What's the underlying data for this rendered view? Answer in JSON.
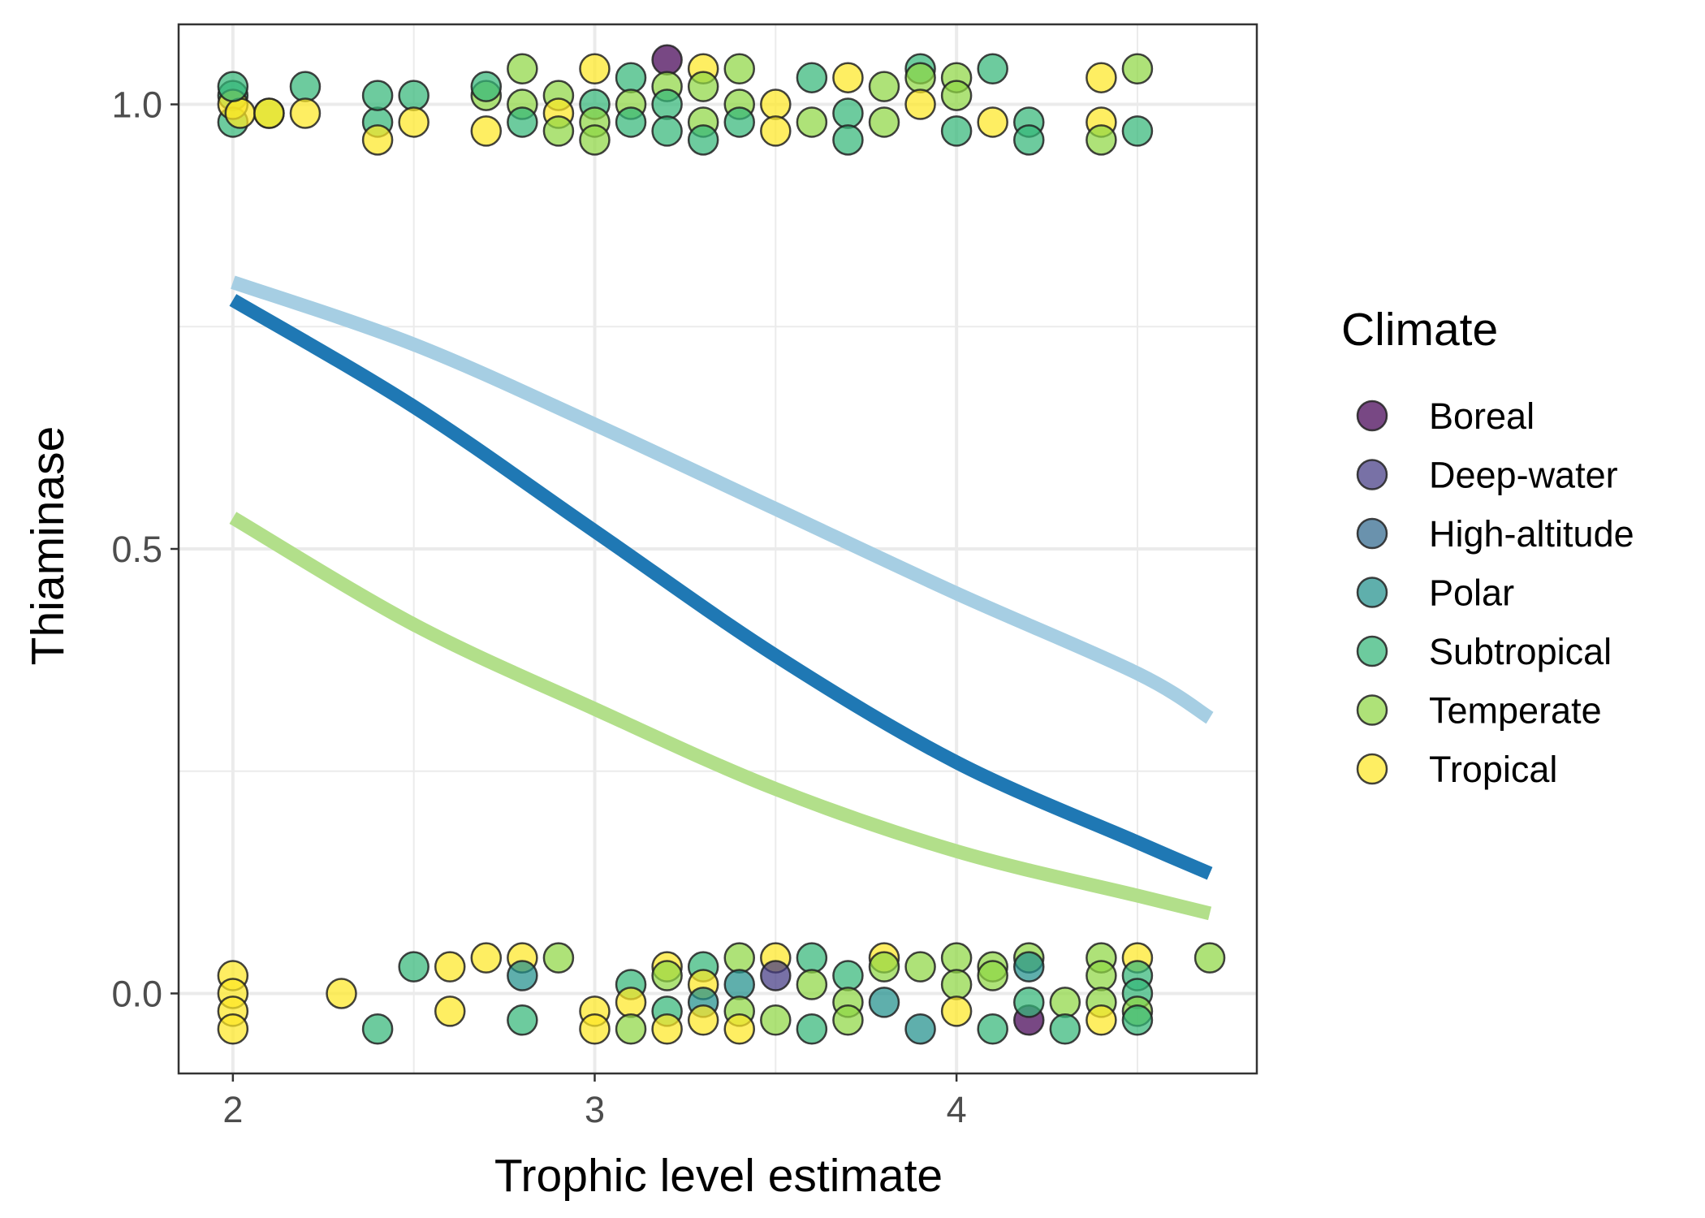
{
  "chart_data": {
    "type": "scatter",
    "xlabel": "Trophic level estimate",
    "ylabel": "Thiaminase",
    "x_ticks": [
      2,
      3,
      4
    ],
    "y_ticks": [
      "0.0",
      "0.5",
      "1.0"
    ],
    "xlim": [
      1.85,
      4.83
    ],
    "ylim": [
      -0.09,
      1.09
    ],
    "grid": true,
    "legend_title": "Climate",
    "legend_position": "right",
    "categories": [
      {
        "name": "Boreal",
        "color": "#440154"
      },
      {
        "name": "Deep-water",
        "color": "#443A83"
      },
      {
        "name": "High-altitude",
        "color": "#31688E"
      },
      {
        "name": "Polar",
        "color": "#21908C"
      },
      {
        "name": "Subtropical",
        "color": "#35B779"
      },
      {
        "name": "Temperate",
        "color": "#8FD744"
      },
      {
        "name": "Tropical",
        "color": "#FDE725"
      }
    ],
    "curves": [
      {
        "color": "#A6CEE3",
        "x": [
          2.0,
          2.5,
          3.0,
          3.5,
          4.0,
          4.5,
          4.7
        ],
        "y": [
          0.8,
          0.73,
          0.64,
          0.545,
          0.45,
          0.36,
          0.31
        ]
      },
      {
        "color": "#1F78B4",
        "x": [
          2.0,
          2.5,
          3.0,
          3.5,
          4.0,
          4.5,
          4.7
        ],
        "y": [
          0.78,
          0.66,
          0.52,
          0.38,
          0.26,
          0.17,
          0.135
        ]
      },
      {
        "color": "#B2DF8A",
        "x": [
          2.0,
          2.5,
          3.0,
          3.5,
          4.0,
          4.5,
          4.7
        ],
        "y": [
          0.535,
          0.415,
          0.32,
          0.23,
          0.16,
          0.11,
          0.09
        ]
      }
    ],
    "points": [
      {
        "x": 2.0,
        "y": 1.01,
        "c": "Subtropical"
      },
      {
        "x": 2.0,
        "y": 0.98,
        "c": "Subtropical"
      },
      {
        "x": 2.0,
        "y": 1.0,
        "c": "Tropical"
      },
      {
        "x": 2.02,
        "y": 0.99,
        "c": "Tropical"
      },
      {
        "x": 2.0,
        "y": 1.02,
        "c": "Subtropical"
      },
      {
        "x": 2.1,
        "y": 0.99,
        "c": "Temperate"
      },
      {
        "x": 2.1,
        "y": 0.99,
        "c": "Tropical"
      },
      {
        "x": 2.2,
        "y": 1.02,
        "c": "Subtropical"
      },
      {
        "x": 2.2,
        "y": 0.99,
        "c": "Tropical"
      },
      {
        "x": 2.4,
        "y": 0.98,
        "c": "Subtropical"
      },
      {
        "x": 2.4,
        "y": 1.01,
        "c": "Subtropical"
      },
      {
        "x": 2.4,
        "y": 0.96,
        "c": "Tropical"
      },
      {
        "x": 2.5,
        "y": 1.01,
        "c": "Subtropical"
      },
      {
        "x": 2.5,
        "y": 0.98,
        "c": "Tropical"
      },
      {
        "x": 2.7,
        "y": 1.01,
        "c": "Temperate"
      },
      {
        "x": 2.7,
        "y": 1.02,
        "c": "Subtropical"
      },
      {
        "x": 2.7,
        "y": 0.97,
        "c": "Tropical"
      },
      {
        "x": 2.8,
        "y": 1.04,
        "c": "Temperate"
      },
      {
        "x": 2.8,
        "y": 1.0,
        "c": "Temperate"
      },
      {
        "x": 2.8,
        "y": 0.98,
        "c": "Subtropical"
      },
      {
        "x": 2.9,
        "y": 1.01,
        "c": "Temperate"
      },
      {
        "x": 2.9,
        "y": 0.99,
        "c": "Tropical"
      },
      {
        "x": 2.9,
        "y": 0.97,
        "c": "Temperate"
      },
      {
        "x": 3.0,
        "y": 1.04,
        "c": "Tropical"
      },
      {
        "x": 3.0,
        "y": 1.0,
        "c": "Subtropical"
      },
      {
        "x": 3.0,
        "y": 0.98,
        "c": "Temperate"
      },
      {
        "x": 3.0,
        "y": 0.96,
        "c": "Temperate"
      },
      {
        "x": 3.1,
        "y": 1.03,
        "c": "Subtropical"
      },
      {
        "x": 3.1,
        "y": 1.0,
        "c": "Temperate"
      },
      {
        "x": 3.1,
        "y": 0.98,
        "c": "Subtropical"
      },
      {
        "x": 3.2,
        "y": 1.05,
        "c": "Boreal"
      },
      {
        "x": 3.2,
        "y": 1.02,
        "c": "Temperate"
      },
      {
        "x": 3.2,
        "y": 1.0,
        "c": "Subtropical"
      },
      {
        "x": 3.2,
        "y": 0.97,
        "c": "Subtropical"
      },
      {
        "x": 3.3,
        "y": 1.04,
        "c": "Tropical"
      },
      {
        "x": 3.3,
        "y": 1.02,
        "c": "Temperate"
      },
      {
        "x": 3.3,
        "y": 0.98,
        "c": "Temperate"
      },
      {
        "x": 3.3,
        "y": 0.96,
        "c": "Subtropical"
      },
      {
        "x": 3.4,
        "y": 1.04,
        "c": "Temperate"
      },
      {
        "x": 3.4,
        "y": 1.0,
        "c": "Temperate"
      },
      {
        "x": 3.4,
        "y": 0.98,
        "c": "Subtropical"
      },
      {
        "x": 3.5,
        "y": 1.0,
        "c": "Tropical"
      },
      {
        "x": 3.5,
        "y": 0.97,
        "c": "Tropical"
      },
      {
        "x": 3.6,
        "y": 1.03,
        "c": "Subtropical"
      },
      {
        "x": 3.6,
        "y": 0.98,
        "c": "Temperate"
      },
      {
        "x": 3.7,
        "y": 1.03,
        "c": "Tropical"
      },
      {
        "x": 3.7,
        "y": 0.99,
        "c": "Subtropical"
      },
      {
        "x": 3.7,
        "y": 0.96,
        "c": "Subtropical"
      },
      {
        "x": 3.8,
        "y": 1.02,
        "c": "Temperate"
      },
      {
        "x": 3.8,
        "y": 0.98,
        "c": "Temperate"
      },
      {
        "x": 3.9,
        "y": 1.04,
        "c": "Subtropical"
      },
      {
        "x": 3.9,
        "y": 1.03,
        "c": "Temperate"
      },
      {
        "x": 3.9,
        "y": 1.0,
        "c": "Tropical"
      },
      {
        "x": 4.0,
        "y": 1.03,
        "c": "Temperate"
      },
      {
        "x": 4.0,
        "y": 1.01,
        "c": "Temperate"
      },
      {
        "x": 4.0,
        "y": 0.97,
        "c": "Subtropical"
      },
      {
        "x": 4.1,
        "y": 1.04,
        "c": "Subtropical"
      },
      {
        "x": 4.1,
        "y": 0.98,
        "c": "Tropical"
      },
      {
        "x": 4.2,
        "y": 0.98,
        "c": "Subtropical"
      },
      {
        "x": 4.2,
        "y": 0.96,
        "c": "Subtropical"
      },
      {
        "x": 4.4,
        "y": 1.03,
        "c": "Tropical"
      },
      {
        "x": 4.4,
        "y": 0.98,
        "c": "Tropical"
      },
      {
        "x": 4.4,
        "y": 0.96,
        "c": "Temperate"
      },
      {
        "x": 4.5,
        "y": 1.04,
        "c": "Temperate"
      },
      {
        "x": 4.5,
        "y": 0.97,
        "c": "Subtropical"
      },
      {
        "x": 2.0,
        "y": 0.02,
        "c": "Tropical"
      },
      {
        "x": 2.0,
        "y": 0.0,
        "c": "Tropical"
      },
      {
        "x": 2.0,
        "y": -0.02,
        "c": "Tropical"
      },
      {
        "x": 2.0,
        "y": -0.04,
        "c": "Tropical"
      },
      {
        "x": 2.3,
        "y": 0.0,
        "c": "Tropical"
      },
      {
        "x": 2.4,
        "y": -0.04,
        "c": "Subtropical"
      },
      {
        "x": 2.5,
        "y": 0.03,
        "c": "Subtropical"
      },
      {
        "x": 2.6,
        "y": 0.03,
        "c": "Tropical"
      },
      {
        "x": 2.6,
        "y": -0.02,
        "c": "Tropical"
      },
      {
        "x": 2.7,
        "y": 0.04,
        "c": "Tropical"
      },
      {
        "x": 2.8,
        "y": 0.04,
        "c": "Tropical"
      },
      {
        "x": 2.8,
        "y": 0.02,
        "c": "Polar"
      },
      {
        "x": 2.8,
        "y": -0.03,
        "c": "Subtropical"
      },
      {
        "x": 2.9,
        "y": 0.04,
        "c": "Temperate"
      },
      {
        "x": 3.0,
        "y": -0.02,
        "c": "Tropical"
      },
      {
        "x": 3.0,
        "y": -0.04,
        "c": "Tropical"
      },
      {
        "x": 3.1,
        "y": 0.01,
        "c": "Subtropical"
      },
      {
        "x": 3.1,
        "y": -0.01,
        "c": "Tropical"
      },
      {
        "x": 3.1,
        "y": -0.04,
        "c": "Temperate"
      },
      {
        "x": 3.2,
        "y": 0.03,
        "c": "Tropical"
      },
      {
        "x": 3.2,
        "y": 0.02,
        "c": "Temperate"
      },
      {
        "x": 3.2,
        "y": -0.02,
        "c": "Subtropical"
      },
      {
        "x": 3.2,
        "y": -0.04,
        "c": "Tropical"
      },
      {
        "x": 3.3,
        "y": 0.03,
        "c": "Subtropical"
      },
      {
        "x": 3.3,
        "y": 0.01,
        "c": "Tropical"
      },
      {
        "x": 3.3,
        "y": -0.01,
        "c": "Polar"
      },
      {
        "x": 3.3,
        "y": -0.03,
        "c": "Tropical"
      },
      {
        "x": 3.4,
        "y": 0.04,
        "c": "Temperate"
      },
      {
        "x": 3.4,
        "y": 0.01,
        "c": "Polar"
      },
      {
        "x": 3.4,
        "y": -0.02,
        "c": "Temperate"
      },
      {
        "x": 3.4,
        "y": -0.04,
        "c": "Tropical"
      },
      {
        "x": 3.5,
        "y": 0.04,
        "c": "Tropical"
      },
      {
        "x": 3.5,
        "y": 0.02,
        "c": "Deep-water"
      },
      {
        "x": 3.5,
        "y": -0.03,
        "c": "Temperate"
      },
      {
        "x": 3.6,
        "y": 0.04,
        "c": "Subtropical"
      },
      {
        "x": 3.6,
        "y": 0.01,
        "c": "Temperate"
      },
      {
        "x": 3.6,
        "y": -0.04,
        "c": "Subtropical"
      },
      {
        "x": 3.7,
        "y": 0.02,
        "c": "Subtropical"
      },
      {
        "x": 3.7,
        "y": -0.01,
        "c": "Temperate"
      },
      {
        "x": 3.7,
        "y": -0.03,
        "c": "Temperate"
      },
      {
        "x": 3.8,
        "y": 0.04,
        "c": "Tropical"
      },
      {
        "x": 3.8,
        "y": 0.03,
        "c": "Temperate"
      },
      {
        "x": 3.8,
        "y": -0.01,
        "c": "Polar"
      },
      {
        "x": 3.9,
        "y": 0.03,
        "c": "Temperate"
      },
      {
        "x": 3.9,
        "y": -0.04,
        "c": "Polar"
      },
      {
        "x": 4.0,
        "y": 0.04,
        "c": "Temperate"
      },
      {
        "x": 4.0,
        "y": 0.01,
        "c": "Temperate"
      },
      {
        "x": 4.0,
        "y": -0.02,
        "c": "Tropical"
      },
      {
        "x": 4.1,
        "y": 0.03,
        "c": "Temperate"
      },
      {
        "x": 4.1,
        "y": 0.02,
        "c": "Temperate"
      },
      {
        "x": 4.1,
        "y": -0.04,
        "c": "Subtropical"
      },
      {
        "x": 4.2,
        "y": 0.04,
        "c": "Temperate"
      },
      {
        "x": 4.2,
        "y": 0.03,
        "c": "Polar"
      },
      {
        "x": 4.2,
        "y": -0.03,
        "c": "Boreal"
      },
      {
        "x": 4.2,
        "y": -0.01,
        "c": "Subtropical"
      },
      {
        "x": 4.3,
        "y": -0.01,
        "c": "Temperate"
      },
      {
        "x": 4.3,
        "y": -0.04,
        "c": "Subtropical"
      },
      {
        "x": 4.4,
        "y": 0.04,
        "c": "Temperate"
      },
      {
        "x": 4.4,
        "y": 0.02,
        "c": "Temperate"
      },
      {
        "x": 4.4,
        "y": -0.01,
        "c": "Temperate"
      },
      {
        "x": 4.4,
        "y": -0.03,
        "c": "Tropical"
      },
      {
        "x": 4.5,
        "y": 0.04,
        "c": "Tropical"
      },
      {
        "x": 4.5,
        "y": 0.02,
        "c": "Subtropical"
      },
      {
        "x": 4.5,
        "y": 0.0,
        "c": "Subtropical"
      },
      {
        "x": 4.5,
        "y": -0.02,
        "c": "Temperate"
      },
      {
        "x": 4.5,
        "y": -0.03,
        "c": "Subtropical"
      },
      {
        "x": 4.7,
        "y": 0.04,
        "c": "Temperate"
      }
    ]
  }
}
